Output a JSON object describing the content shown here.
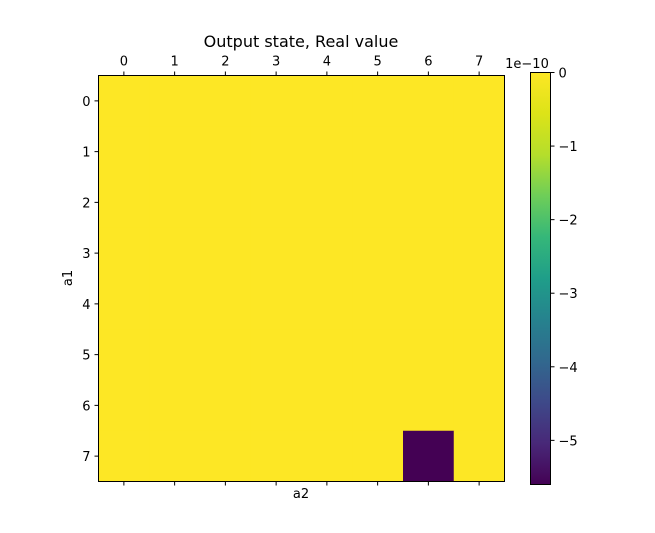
{
  "chart_data": {
    "type": "heatmap",
    "title": "Output state, Real value",
    "xlabel": "a2",
    "ylabel": "a1",
    "x_ticks": [
      "0",
      "1",
      "2",
      "3",
      "4",
      "5",
      "6",
      "7"
    ],
    "y_ticks": [
      "0",
      "1",
      "2",
      "3",
      "4",
      "5",
      "6",
      "7"
    ],
    "values": [
      [
        0,
        0,
        0,
        0,
        0,
        0,
        0,
        0
      ],
      [
        0,
        0,
        0,
        0,
        0,
        0,
        0,
        0
      ],
      [
        0,
        0,
        0,
        0,
        0,
        0,
        0,
        0
      ],
      [
        0,
        0,
        0,
        0,
        0,
        0,
        0,
        0
      ],
      [
        0,
        0,
        0,
        0,
        0,
        0,
        0,
        0
      ],
      [
        0,
        0,
        0,
        0,
        0,
        0,
        0,
        0
      ],
      [
        0,
        0,
        0,
        0,
        0,
        0,
        0,
        0
      ],
      [
        0,
        0,
        0,
        0,
        0,
        0,
        -5.6e-10,
        0
      ]
    ],
    "colormap": "viridis",
    "vmin": -5.6e-10,
    "vmax": 0,
    "colorbar": {
      "offset_label": "1e−10",
      "ticks": [
        0,
        -1,
        -2,
        -3,
        -4,
        -5
      ],
      "tick_labels": [
        "0",
        "−1",
        "−2",
        "−3",
        "−4",
        "−5"
      ],
      "scale": 1e-10
    },
    "grid": false,
    "legend": "none"
  }
}
